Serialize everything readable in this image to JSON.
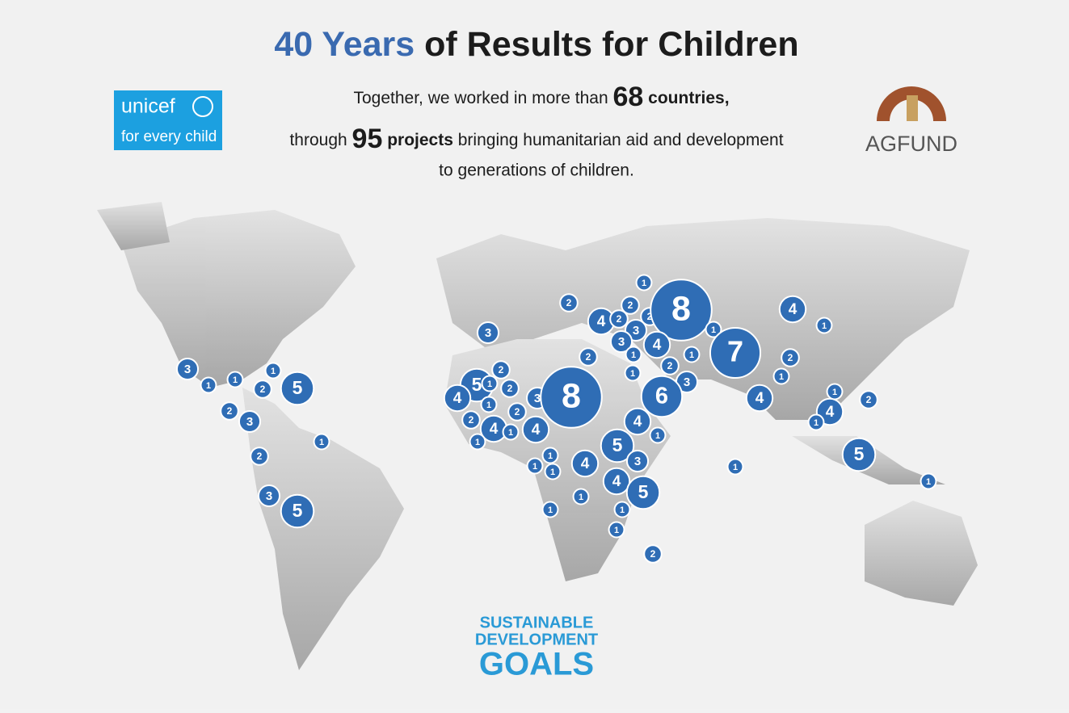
{
  "header": {
    "title_highlight": "40 Years",
    "title_rest": "of Results for Children",
    "line1_text": "Together, we worked in more than",
    "countries_count": 68,
    "countries_word": "countries,",
    "line2_start": "through",
    "projects_count": 95,
    "projects_word": "projects",
    "line2_end": "bringing humanitarian aid and development",
    "line3": "to generations of children."
  },
  "logos": {
    "unicef": "unicef",
    "unicef_tagline": "for every child",
    "agfund": "AGFUND",
    "sdg_line1": "SUSTAINABLE",
    "sdg_line2": "DEVELOPMENT",
    "sdg_line3": "GOALS"
  },
  "map": {
    "project_counts": [
      3,
      1,
      1,
      1,
      2,
      5,
      2,
      3,
      1,
      2,
      3,
      5,
      2,
      3,
      1,
      4,
      2,
      2,
      2,
      8,
      3,
      3,
      4,
      1,
      7,
      4,
      1,
      1,
      1,
      2,
      2,
      2,
      1,
      1,
      3,
      2,
      5,
      4,
      1,
      2,
      1,
      3,
      8,
      6,
      4,
      1,
      2,
      2,
      2,
      4,
      1,
      4,
      1,
      4,
      1,
      4,
      1,
      5,
      1,
      1,
      1,
      4,
      3,
      1,
      5,
      4,
      5,
      1,
      1,
      1,
      1,
      1,
      2
    ]
  }
}
